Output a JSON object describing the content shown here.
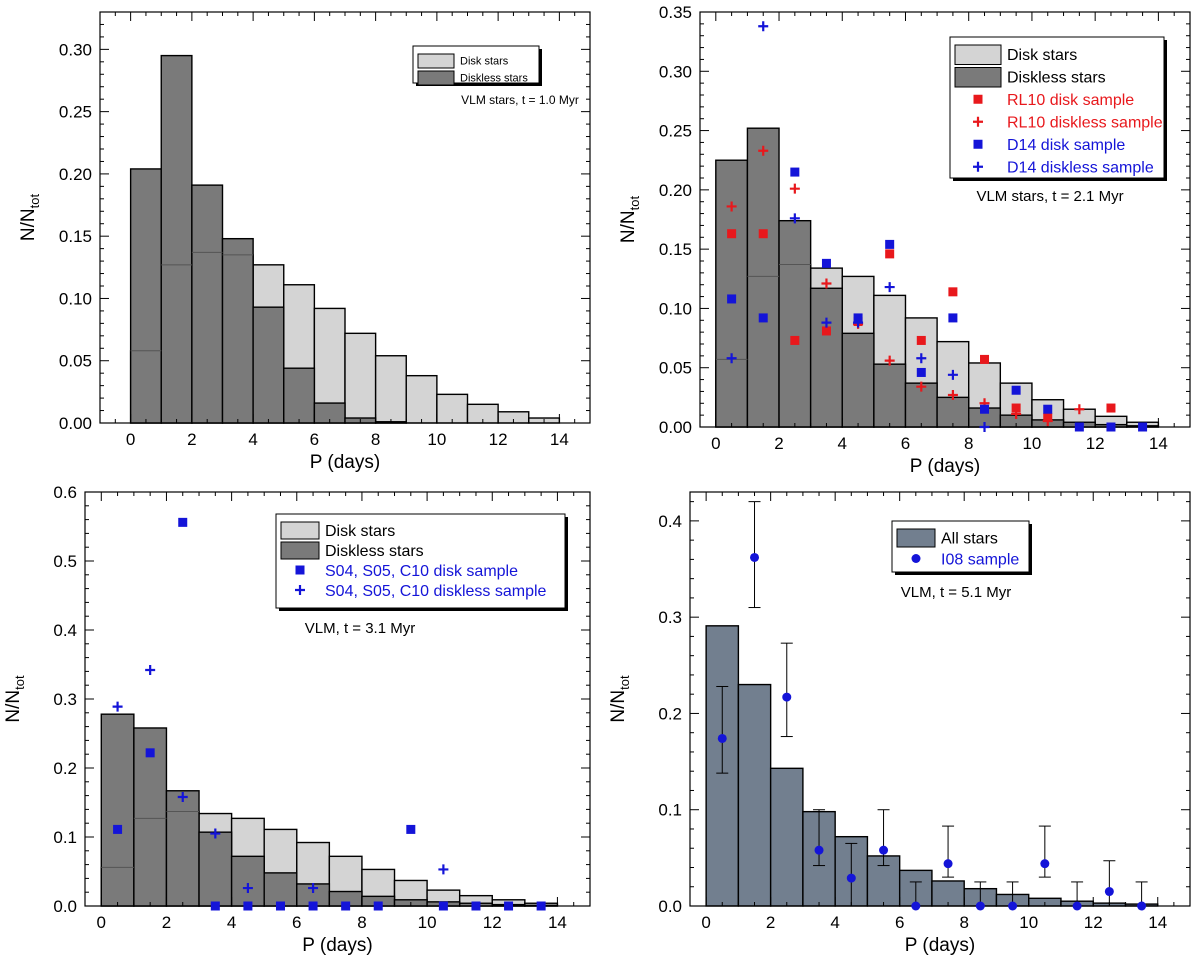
{
  "chart_data": [
    {
      "type": "bar",
      "panel": "top-left",
      "xlabel": "P (days)",
      "ylabel": "N/N",
      "ylabel_sub": "tot",
      "xlim": [
        -1,
        15
      ],
      "ylim": [
        0,
        0.33
      ],
      "xticks": [
        0,
        2,
        4,
        6,
        8,
        10,
        12,
        14
      ],
      "yticks": [
        0.0,
        0.05,
        0.1,
        0.15,
        0.2,
        0.25,
        0.3
      ],
      "ytick_labels": [
        "0.00",
        "0.05",
        "0.10",
        "0.15",
        "0.20",
        "0.25",
        "0.30"
      ],
      "annotation": "VLM stars, t =  1.0 Myr",
      "legend_position": "top-right",
      "legend": [
        "Disk stars",
        "Diskless stars"
      ],
      "bin_edges": [
        0,
        1,
        2,
        3,
        4,
        5,
        6,
        7,
        8,
        9,
        10,
        11,
        12,
        13,
        14
      ],
      "series": [
        {
          "name": "Disk stars",
          "color": "#d4d4d4",
          "values": [
            0.058,
            0.127,
            0.137,
            0.135,
            0.127,
            0.111,
            0.092,
            0.072,
            0.054,
            0.038,
            0.023,
            0.015,
            0.009,
            0.004
          ]
        },
        {
          "name": "Diskless stars",
          "color": "#7a7a7a",
          "values": [
            0.204,
            0.295,
            0.191,
            0.148,
            0.093,
            0.044,
            0.016,
            0.004,
            0.001,
            0,
            0,
            0,
            0,
            0
          ]
        }
      ]
    },
    {
      "type": "bar",
      "panel": "top-right",
      "xlabel": "P (days)",
      "ylabel": "N/N",
      "ylabel_sub": "tot",
      "xlim": [
        -0.5,
        15
      ],
      "ylim": [
        0,
        0.35
      ],
      "xticks": [
        0,
        2,
        4,
        6,
        8,
        10,
        12,
        14
      ],
      "yticks": [
        0.0,
        0.05,
        0.1,
        0.15,
        0.2,
        0.25,
        0.3,
        0.35
      ],
      "ytick_labels": [
        "0.00",
        "0.05",
        "0.10",
        "0.15",
        "0.20",
        "0.25",
        "0.30",
        "0.35"
      ],
      "annotation": "VLM stars, t =   2.1 Myr",
      "legend_position": "top-right",
      "legend": [
        "Disk stars",
        "Diskless stars",
        "RL10 disk sample",
        "RL10 diskless sample",
        "D14 disk sample",
        "D14 diskless sample"
      ],
      "bin_edges": [
        0,
        1,
        2,
        3,
        4,
        5,
        6,
        7,
        8,
        9,
        10,
        11,
        12,
        13,
        14
      ],
      "series": [
        {
          "name": "Disk stars",
          "color": "#d4d4d4",
          "values": [
            0.057,
            0.127,
            0.137,
            0.134,
            0.127,
            0.111,
            0.092,
            0.072,
            0.054,
            0.037,
            0.023,
            0.015,
            0.009,
            0.004
          ]
        },
        {
          "name": "Diskless stars",
          "color": "#7a7a7a",
          "values": [
            0.225,
            0.252,
            0.174,
            0.117,
            0.079,
            0.053,
            0.037,
            0.025,
            0.016,
            0.01,
            0.006,
            0.004,
            0.002,
            0.001
          ]
        },
        {
          "name": "RL10 disk sample",
          "color": "#e8181c",
          "marker": "square",
          "x": [
            0.5,
            1.5,
            2.5,
            3.5,
            4.5,
            5.5,
            6.5,
            7.5,
            8.5,
            9.5,
            10.5,
            12.5
          ],
          "values": [
            0.163,
            0.163,
            0.073,
            0.081,
            0.089,
            0.146,
            0.073,
            0.114,
            0.057,
            0.016,
            0.008,
            0.016
          ]
        },
        {
          "name": "RL10 diskless sample",
          "color": "#e8181c",
          "marker": "plus",
          "x": [
            0.5,
            1.5,
            2.5,
            3.5,
            4.5,
            5.5,
            6.5,
            7.5,
            8.5,
            9.5,
            10.5,
            11.5
          ],
          "values": [
            0.186,
            0.233,
            0.201,
            0.121,
            0.087,
            0.056,
            0.034,
            0.027,
            0.02,
            0.011,
            0.005,
            0.015
          ]
        },
        {
          "name": "D14 disk sample",
          "color": "#1414d8",
          "marker": "square",
          "x": [
            0.5,
            1.5,
            2.5,
            3.5,
            4.5,
            5.5,
            6.5,
            7.5,
            8.5,
            9.5,
            10.5,
            11.5,
            12.5,
            13.5
          ],
          "values": [
            0.108,
            0.092,
            0.215,
            0.138,
            0.092,
            0.154,
            0.046,
            0.092,
            0.015,
            0.031,
            0.015,
            0.0,
            0.0,
            0.0
          ]
        },
        {
          "name": "D14 diskless sample",
          "color": "#1414d8",
          "marker": "plus",
          "x": [
            0.5,
            1.5,
            2.5,
            3.5,
            4.5,
            5.5,
            6.5,
            7.5,
            8.5
          ],
          "values": [
            0.058,
            0.338,
            0.176,
            0.088,
            0.088,
            0.118,
            0.058,
            0.044,
            0.0
          ]
        }
      ]
    },
    {
      "type": "bar",
      "panel": "bottom-left",
      "xlabel": "P (days)",
      "ylabel": "N/N",
      "ylabel_sub": "tot",
      "xlim": [
        -0.5,
        15
      ],
      "ylim": [
        0,
        0.6
      ],
      "xticks": [
        0,
        2,
        4,
        6,
        8,
        10,
        12,
        14
      ],
      "yticks": [
        0.0,
        0.1,
        0.2,
        0.3,
        0.4,
        0.5,
        0.6
      ],
      "ytick_labels": [
        "0.0",
        "0.1",
        "0.2",
        "0.3",
        "0.4",
        "0.5",
        "0.6"
      ],
      "annotation": "VLM, t =   3.1 Myr",
      "legend_position": "top-right",
      "legend": [
        "Disk stars",
        "Diskless stars",
        "S04, S05, C10 disk sample",
        "S04, S05, C10 diskless sample"
      ],
      "bin_edges": [
        0,
        1,
        2,
        3,
        4,
        5,
        6,
        7,
        8,
        9,
        10,
        11,
        12,
        13,
        14
      ],
      "series": [
        {
          "name": "Disk stars",
          "color": "#d4d4d4",
          "values": [
            0.056,
            0.127,
            0.137,
            0.134,
            0.127,
            0.111,
            0.092,
            0.072,
            0.053,
            0.037,
            0.023,
            0.015,
            0.009,
            0.004
          ]
        },
        {
          "name": "Diskless stars",
          "color": "#7a7a7a",
          "values": [
            0.278,
            0.258,
            0.167,
            0.107,
            0.072,
            0.048,
            0.032,
            0.021,
            0.014,
            0.009,
            0.006,
            0.004,
            0.002,
            0.001
          ]
        },
        {
          "name": "S04, S05, C10 disk sample",
          "color": "#1414d8",
          "marker": "square",
          "x": [
            0.5,
            1.5,
            2.5,
            3.5,
            4.5,
            5.5,
            6.5,
            7.5,
            8.5,
            9.5,
            10.5,
            11.5,
            12.5,
            13.5
          ],
          "values": [
            0.111,
            0.222,
            0.556,
            0.0,
            0.0,
            0.0,
            0.0,
            0.0,
            0.0,
            0.111,
            0.0,
            0.0,
            0.0,
            0.0
          ]
        },
        {
          "name": "S04, S05, C10 diskless sample",
          "color": "#1414d8",
          "marker": "plus",
          "x": [
            0.5,
            1.5,
            2.5,
            3.5,
            4.5,
            6.5,
            10.5
          ],
          "values": [
            0.289,
            0.342,
            0.158,
            0.105,
            0.026,
            0.026,
            0.053
          ]
        }
      ]
    },
    {
      "type": "bar",
      "panel": "bottom-right",
      "xlabel": "P (days)",
      "ylabel": "N/N",
      "ylabel_sub": "tot",
      "xlim": [
        -0.5,
        15
      ],
      "ylim": [
        0,
        0.43
      ],
      "xticks": [
        0,
        2,
        4,
        6,
        8,
        10,
        12,
        14
      ],
      "yticks": [
        0.0,
        0.1,
        0.2,
        0.3,
        0.4
      ],
      "ytick_labels": [
        "0.0",
        "0.1",
        "0.2",
        "0.3",
        "0.4"
      ],
      "annotation": "VLM, t =   5.1 Myr",
      "legend_position": "top-right",
      "legend": [
        "All stars",
        "I08 sample"
      ],
      "bin_edges": [
        0,
        1,
        2,
        3,
        4,
        5,
        6,
        7,
        8,
        9,
        10,
        11,
        12,
        13,
        14
      ],
      "series": [
        {
          "name": "All stars",
          "color": "#727f8f",
          "values": [
            0.291,
            0.23,
            0.143,
            0.098,
            0.072,
            0.052,
            0.037,
            0.026,
            0.018,
            0.012,
            0.008,
            0.005,
            0.003,
            0.002
          ]
        },
        {
          "name": "I08 sample",
          "color": "#1414d8",
          "marker": "circle",
          "x": [
            0.5,
            1.5,
            2.5,
            3.5,
            4.5,
            5.5,
            6.5,
            7.5,
            8.5,
            9.5,
            10.5,
            11.5,
            12.5,
            13.5
          ],
          "values": [
            0.174,
            0.362,
            0.217,
            0.058,
            0.029,
            0.058,
            0.0,
            0.044,
            0.0,
            0.0,
            0.044,
            0.0,
            0.015,
            0.0
          ],
          "err_hi": [
            0.228,
            0.42,
            0.273,
            0.1,
            0.065,
            0.1,
            0.025,
            0.083,
            0.025,
            0.025,
            0.083,
            0.025,
            0.047,
            0.025
          ],
          "err_lo": [
            0.138,
            0.31,
            0.176,
            0.042,
            0.0,
            0.042,
            0.0,
            0.03,
            0.0,
            0.0,
            0.03,
            0.0,
            0.0,
            0.0
          ]
        }
      ]
    }
  ]
}
